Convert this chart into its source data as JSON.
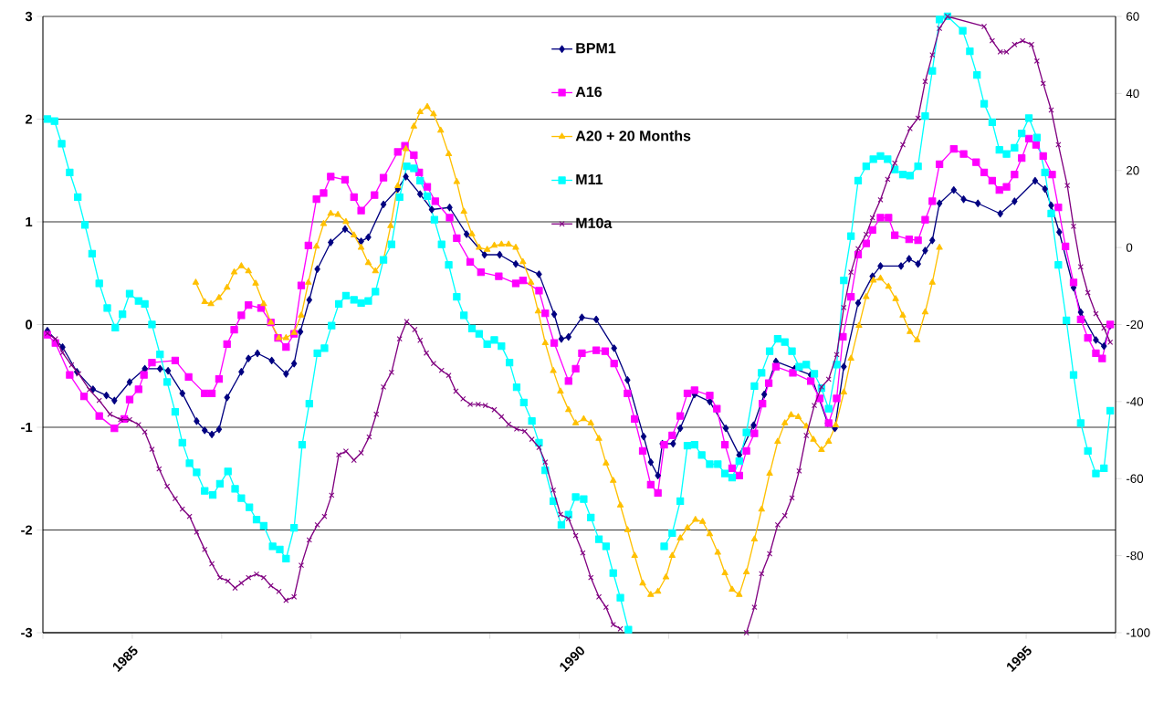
{
  "chart_data": {
    "type": "line",
    "xlim": [
      1984,
      1996
    ],
    "xticks": [
      {
        "value": 1984,
        "label": null
      },
      1985,
      {
        "value": 1986,
        "label": null
      },
      {
        "value": 1987,
        "label": null
      },
      {
        "value": 1988,
        "label": null
      },
      {
        "value": 1989,
        "label": null
      },
      1990,
      {
        "value": 1991,
        "label": null
      },
      {
        "value": 1992,
        "label": null
      },
      {
        "value": 1993,
        "label": null
      },
      {
        "value": 1994,
        "label": null
      },
      1995,
      {
        "value": 1996,
        "label": null
      }
    ],
    "ylim": [
      -3,
      3
    ],
    "yticks": [
      -3,
      -2,
      -1,
      0,
      1,
      2,
      3
    ],
    "y2lim": [
      -100,
      60
    ],
    "y2ticks": [
      -100,
      -80,
      -60,
      -40,
      -20,
      0,
      20,
      40,
      60
    ],
    "grid": "y",
    "legend": "top",
    "line_style": "solid",
    "series": [
      {
        "name": "BPM1",
        "color": "#000080",
        "marker": "diamond",
        "x": [
          1984.05,
          1984.22,
          1984.38,
          1984.56,
          1984.71,
          1984.8,
          1984.97,
          1985.14,
          1985.31,
          1985.4,
          1985.56,
          1985.72,
          1985.81,
          1985.89,
          1985.97,
          1986.06,
          1986.22,
          1986.3,
          1986.4,
          1986.56,
          1986.72,
          1986.81,
          1986.88,
          1986.98,
          1987.07,
          1987.22,
          1987.38,
          1987.56,
          1987.64,
          1987.81,
          1987.97,
          1988.06,
          1988.22,
          1988.35,
          1988.55,
          1988.74,
          1988.94,
          1989.11,
          1989.29,
          1989.55,
          1989.72,
          1989.8,
          1989.88,
          1990.03,
          1990.19,
          1990.39,
          1990.54,
          1990.72,
          1990.8,
          1990.88,
          1990.93,
          1991.05,
          1991.13,
          1991.29,
          1991.46,
          1991.64,
          1991.79,
          1991.95,
          1992.07,
          1992.2,
          1992.41,
          1992.59,
          1992.78,
          1992.86,
          1992.96,
          1993.12,
          1993.28,
          1993.37,
          1993.6,
          1993.69,
          1993.79,
          1993.87,
          1993.95,
          1994.03,
          1994.19,
          1994.3,
          1994.46,
          1994.71,
          1994.87,
          1995.1,
          1995.21,
          1995.28,
          1995.37,
          1995.53,
          1995.61,
          1995.78,
          1995.87,
          1995.94
        ],
        "values": [
          -0.06,
          -0.22,
          -0.46,
          -0.63,
          -0.69,
          -0.74,
          -0.56,
          -0.43,
          -0.43,
          -0.45,
          -0.67,
          -0.94,
          -1.03,
          -1.07,
          -1.02,
          -0.71,
          -0.46,
          -0.33,
          -0.28,
          -0.35,
          -0.48,
          -0.38,
          -0.07,
          0.24,
          0.54,
          0.8,
          0.93,
          0.81,
          0.85,
          1.17,
          1.32,
          1.44,
          1.27,
          1.12,
          1.14,
          0.88,
          0.68,
          0.68,
          0.59,
          0.49,
          0.1,
          -0.14,
          -0.12,
          0.07,
          0.05,
          -0.23,
          -0.54,
          -1.09,
          -1.34,
          -1.47,
          -1.16,
          -1.16,
          -1.01,
          -0.68,
          -0.75,
          -1.01,
          -1.27,
          -0.98,
          -0.68,
          -0.36,
          -0.43,
          -0.49,
          -0.96,
          -1.01,
          -0.41,
          0.21,
          0.47,
          0.57,
          0.57,
          0.64,
          0.59,
          0.72,
          0.82,
          1.18,
          1.31,
          1.22,
          1.18,
          1.08,
          1.2,
          1.4,
          1.32,
          1.16,
          0.9,
          0.36,
          0.12,
          -0.15,
          -0.21,
          -0.01
        ]
      },
      {
        "name": "A16",
        "color": "#ff00ff",
        "marker": "square",
        "x": [
          1984.05,
          1984.14,
          1984.3,
          1984.46,
          1984.63,
          1984.8,
          1984.91,
          1984.97,
          1985.07,
          1985.13,
          1985.22,
          1985.48,
          1985.63,
          1985.81,
          1985.89,
          1985.97,
          1986.06,
          1986.14,
          1986.22,
          1986.3,
          1986.44,
          1986.55,
          1986.63,
          1986.72,
          1986.81,
          1986.89,
          1986.97,
          1987.06,
          1987.14,
          1987.22,
          1987.38,
          1987.48,
          1987.56,
          1987.71,
          1987.81,
          1987.97,
          1988.05,
          1988.15,
          1988.21,
          1988.3,
          1988.39,
          1988.55,
          1988.63,
          1988.78,
          1988.9,
          1989.1,
          1989.29,
          1989.37,
          1989.55,
          1989.62,
          1989.72,
          1989.88,
          1989.96,
          1990.03,
          1990.19,
          1990.29,
          1990.39,
          1990.54,
          1990.62,
          1990.71,
          1990.8,
          1990.88,
          1990.95,
          1991.04,
          1991.13,
          1991.21,
          1991.29,
          1991.46,
          1991.54,
          1991.63,
          1991.71,
          1991.79,
          1991.87,
          1991.96,
          1992.05,
          1992.12,
          1992.2,
          1992.39,
          1992.59,
          1992.69,
          1992.79,
          1992.88,
          1992.95,
          1993.04,
          1993.12,
          1993.21,
          1993.28,
          1993.37,
          1993.46,
          1993.53,
          1993.69,
          1993.79,
          1993.87,
          1993.95,
          1994.03,
          1994.19,
          1994.3,
          1994.44,
          1994.53,
          1994.62,
          1994.7,
          1994.78,
          1994.87,
          1994.95,
          1995.03,
          1995.11,
          1995.19,
          1995.29,
          1995.36,
          1995.44,
          1995.53,
          1995.61,
          1995.69,
          1995.78,
          1995.85,
          1995.94
        ],
        "values": [
          -0.1,
          -0.18,
          -0.49,
          -0.7,
          -0.89,
          -1.01,
          -0.92,
          -0.73,
          -0.63,
          -0.49,
          -0.37,
          -0.35,
          -0.51,
          -0.67,
          -0.67,
          -0.53,
          -0.19,
          -0.05,
          0.09,
          0.19,
          0.16,
          0.02,
          -0.13,
          -0.22,
          -0.09,
          0.38,
          0.77,
          1.22,
          1.28,
          1.44,
          1.41,
          1.24,
          1.11,
          1.26,
          1.43,
          1.68,
          1.74,
          1.65,
          1.48,
          1.34,
          1.2,
          1.04,
          0.84,
          0.61,
          0.51,
          0.47,
          0.4,
          0.43,
          0.33,
          0.11,
          -0.18,
          -0.55,
          -0.43,
          -0.28,
          -0.25,
          -0.26,
          -0.38,
          -0.67,
          -0.92,
          -1.23,
          -1.56,
          -1.64,
          -1.17,
          -1.08,
          -0.89,
          -0.67,
          -0.64,
          -0.69,
          -0.82,
          -1.17,
          -1.4,
          -1.47,
          -1.23,
          -1.06,
          -0.77,
          -0.57,
          -0.41,
          -0.47,
          -0.55,
          -0.72,
          -0.96,
          -0.72,
          -0.12,
          0.27,
          0.68,
          0.79,
          0.92,
          1.04,
          1.04,
          0.87,
          0.83,
          0.82,
          1.02,
          1.2,
          1.56,
          1.71,
          1.66,
          1.58,
          1.48,
          1.4,
          1.31,
          1.34,
          1.46,
          1.62,
          1.81,
          1.75,
          1.64,
          1.46,
          1.14,
          0.76,
          0.41,
          0.05,
          -0.13,
          -0.28,
          -0.33,
          0.0
        ]
      },
      {
        "name": "A20 + 20 Months",
        "color": "#ffc000",
        "marker": "triangle",
        "x": [
          1985.71,
          1985.81,
          1985.88,
          1985.97,
          1986.06,
          1986.14,
          1986.22,
          1986.3,
          1986.38,
          1986.47,
          1986.55,
          1986.64,
          1986.72,
          1986.81,
          1986.89,
          1986.97,
          1987.06,
          1987.14,
          1987.22,
          1987.3,
          1987.39,
          1987.48,
          1987.56,
          1987.64,
          1987.72,
          1987.81,
          1987.89,
          1987.97,
          1988.06,
          1988.15,
          1988.22,
          1988.3,
          1988.37,
          1988.45,
          1988.54,
          1988.63,
          1988.71,
          1988.8,
          1988.88,
          1988.97,
          1989.05,
          1989.13,
          1989.21,
          1989.29,
          1989.37,
          1989.46,
          1989.54,
          1989.62,
          1989.71,
          1989.79,
          1989.88,
          1989.96,
          1990.05,
          1990.13,
          1990.22,
          1990.3,
          1990.38,
          1990.46,
          1990.54,
          1990.62,
          1990.71,
          1990.8,
          1990.88,
          1990.97,
          1991.04,
          1991.13,
          1991.21,
          1991.3,
          1991.38,
          1991.46,
          1991.55,
          1991.63,
          1991.71,
          1991.79,
          1991.87,
          1991.96,
          1992.04,
          1992.13,
          1992.22,
          1992.3,
          1992.37,
          1992.45,
          1992.54,
          1992.62,
          1992.71,
          1992.79,
          1992.87,
          1992.96,
          1993.04,
          1993.13,
          1993.21,
          1993.29,
          1993.37,
          1993.46,
          1993.54,
          1993.62,
          1993.7,
          1993.78,
          1993.87,
          1993.95,
          1994.03
        ],
        "values": [
          0.41,
          0.22,
          0.2,
          0.26,
          0.36,
          0.51,
          0.57,
          0.52,
          0.4,
          0.2,
          0.02,
          -0.13,
          -0.13,
          -0.08,
          0.09,
          0.41,
          0.76,
          0.98,
          1.08,
          1.07,
          1.0,
          0.87,
          0.75,
          0.6,
          0.52,
          0.63,
          0.96,
          1.35,
          1.71,
          1.93,
          2.07,
          2.12,
          2.05,
          1.89,
          1.66,
          1.39,
          1.1,
          0.88,
          0.75,
          0.73,
          0.77,
          0.78,
          0.78,
          0.75,
          0.61,
          0.41,
          0.13,
          -0.18,
          -0.45,
          -0.65,
          -0.83,
          -0.96,
          -0.92,
          -0.96,
          -1.11,
          -1.35,
          -1.52,
          -1.76,
          -2.0,
          -2.25,
          -2.52,
          -2.63,
          -2.6,
          -2.46,
          -2.25,
          -2.08,
          -1.98,
          -1.9,
          -1.92,
          -2.04,
          -2.22,
          -2.42,
          -2.58,
          -2.63,
          -2.41,
          -2.09,
          -1.8,
          -1.45,
          -1.14,
          -0.96,
          -0.88,
          -0.9,
          -0.99,
          -1.12,
          -1.22,
          -1.14,
          -0.98,
          -0.66,
          -0.33,
          -0.01,
          0.27,
          0.43,
          0.45,
          0.37,
          0.25,
          0.09,
          -0.07,
          -0.15,
          0.12,
          0.41,
          0.75
        ]
      },
      {
        "name": "M11",
        "color": "#00ffff",
        "marker": "square",
        "x": [
          1984.05,
          1984.13,
          1984.21,
          1984.3,
          1984.39,
          1984.47,
          1984.55,
          1984.63,
          1984.72,
          1984.81,
          1984.89,
          1984.97,
          1985.07,
          1985.14,
          1985.22,
          1985.31,
          1985.39,
          1985.48,
          1985.56,
          1985.64,
          1985.72,
          1985.81,
          1985.9,
          1985.98,
          1986.07,
          1986.15,
          1986.22,
          1986.31,
          1986.39,
          1986.47,
          1986.57,
          1986.65,
          1986.72,
          1986.81,
          1986.9,
          1986.98,
          1987.07,
          1987.15,
          1987.23,
          1987.31,
          1987.39,
          1987.48,
          1987.56,
          1987.64,
          1987.72,
          1987.81,
          1987.9,
          1987.99,
          1988.07,
          1988.15,
          1988.22,
          1988.3,
          1988.38,
          1988.46,
          1988.54,
          1988.63,
          1988.71,
          1988.8,
          1988.88,
          1988.97,
          1989.05,
          1989.13,
          1989.22,
          1989.3,
          1989.38,
          1989.47,
          1989.55,
          1989.62,
          1989.71,
          1989.8,
          1989.88,
          1989.96,
          1990.05,
          1990.13,
          1990.22,
          1990.3,
          1990.38,
          1990.46,
          1990.55,
          1990.7,
          1990.95,
          1991.04,
          1991.13,
          1991.21,
          1991.29,
          1991.37,
          1991.46,
          1991.55,
          1991.63,
          1991.71,
          1991.79,
          1991.87,
          1991.96,
          1992.04,
          1992.13,
          1992.22,
          1992.3,
          1992.38,
          1992.46,
          1992.54,
          1992.63,
          1992.71,
          1992.79,
          1992.88,
          1992.96,
          1993.04,
          1993.12,
          1993.21,
          1993.29,
          1993.37,
          1993.45,
          1993.53,
          1993.62,
          1993.7,
          1993.79,
          1993.87,
          1993.95,
          1994.03,
          1994.12,
          1994.29,
          1994.37,
          1994.45,
          1994.53,
          1994.62,
          1994.7,
          1994.78,
          1994.87,
          1994.95,
          1995.03,
          1995.12,
          1995.21,
          1995.28,
          1995.36,
          1995.45,
          1995.53,
          1995.61,
          1995.69,
          1995.78,
          1995.87,
          1995.94
        ],
        "values": [
          2.0,
          1.98,
          1.76,
          1.48,
          1.24,
          0.97,
          0.69,
          0.4,
          0.16,
          -0.03,
          0.1,
          0.3,
          0.23,
          0.2,
          0.0,
          -0.29,
          -0.56,
          -0.85,
          -1.15,
          -1.35,
          -1.44,
          -1.62,
          -1.66,
          -1.55,
          -1.43,
          -1.6,
          -1.69,
          -1.78,
          -1.9,
          -1.96,
          -2.16,
          -2.19,
          -2.28,
          -1.98,
          -1.17,
          -0.77,
          -0.28,
          -0.23,
          -0.01,
          0.2,
          0.28,
          0.24,
          0.21,
          0.23,
          0.32,
          0.63,
          0.78,
          1.24,
          1.54,
          1.52,
          1.4,
          1.25,
          1.02,
          0.78,
          0.58,
          0.27,
          0.09,
          -0.04,
          -0.09,
          -0.19,
          -0.15,
          -0.21,
          -0.37,
          -0.61,
          -0.76,
          -0.94,
          -1.15,
          -1.42,
          -1.72,
          -1.95,
          -1.85,
          -1.68,
          -1.7,
          -1.88,
          -2.09,
          -2.16,
          -2.42,
          -2.66,
          -2.97,
          null,
          -2.16,
          -2.03,
          -1.72,
          -1.18,
          -1.17,
          -1.27,
          -1.36,
          -1.36,
          -1.45,
          -1.49,
          -1.33,
          -1.05,
          -0.6,
          -0.47,
          -0.26,
          -0.14,
          -0.17,
          -0.26,
          -0.41,
          -0.39,
          -0.48,
          -0.62,
          -0.82,
          -0.39,
          0.43,
          0.86,
          1.4,
          1.54,
          1.61,
          1.64,
          1.61,
          1.51,
          1.46,
          1.45,
          1.54,
          2.03,
          2.47,
          2.97,
          3.0,
          2.86,
          2.66,
          2.43,
          2.15,
          1.97,
          1.7,
          1.66,
          1.72,
          1.86,
          2.01,
          1.82,
          1.48,
          1.08,
          0.58,
          0.04,
          -0.49,
          -0.96,
          -1.23,
          -1.45,
          -1.4,
          -0.84
        ]
      },
      {
        "name": "M10a",
        "color": "#800080",
        "marker": "cross",
        "axis": "y2",
        "x": [
          1984.05,
          1984.14,
          1984.22,
          1984.32,
          1984.4,
          1984.52,
          1984.63,
          1984.75,
          1984.87,
          1984.97,
          1985.07,
          1985.14,
          1985.22,
          1985.3,
          1985.39,
          1985.48,
          1985.56,
          1985.64,
          1985.72,
          1985.81,
          1985.89,
          1985.98,
          1986.07,
          1986.15,
          1986.22,
          1986.3,
          1986.39,
          1986.47,
          1986.55,
          1986.64,
          1986.72,
          1986.81,
          1986.89,
          1986.98,
          1987.07,
          1987.15,
          1987.23,
          1987.31,
          1987.39,
          1987.48,
          1987.56,
          1987.65,
          1987.73,
          1987.81,
          1987.9,
          1987.99,
          1988.07,
          1988.16,
          1988.22,
          1988.29,
          1988.37,
          1988.46,
          1988.54,
          1988.62,
          1988.7,
          1988.78,
          1988.87,
          1988.95,
          1989.05,
          1989.13,
          1989.21,
          1989.3,
          1989.39,
          1989.47,
          1989.55,
          1989.62,
          1989.71,
          1989.79,
          1989.88,
          1989.96,
          1990.04,
          1990.13,
          1990.22,
          1990.3,
          1990.38,
          1990.46,
          1991.2,
          1991.87,
          1991.96,
          1992.04,
          1992.13,
          1992.22,
          1992.3,
          1992.38,
          1992.46,
          1992.54,
          1992.63,
          1992.71,
          1992.79,
          1992.88,
          1992.96,
          1993.04,
          1993.12,
          1993.21,
          1993.28,
          1993.37,
          1993.45,
          1993.53,
          1993.62,
          1993.7,
          1993.79,
          1993.87,
          1993.95,
          1994.03,
          1994.12,
          1994.53,
          1994.62,
          1994.71,
          1994.78,
          1994.87,
          1994.96,
          1995.06,
          1995.12,
          1995.19,
          1995.28,
          1995.36,
          1995.46,
          1995.53,
          1995.61,
          1995.69,
          1995.78,
          1995.87,
          1995.94
        ],
        "values": [
          -22.3,
          -23.7,
          -27.3,
          -30.5,
          -32.8,
          -36.9,
          -39.7,
          -43.3,
          -44.7,
          -44.7,
          -46.0,
          -47.9,
          -52.4,
          -57.5,
          -62.0,
          -65.2,
          -67.9,
          -69.8,
          -73.9,
          -78.4,
          -82.1,
          -85.7,
          -86.6,
          -88.4,
          -87.1,
          -85.7,
          -84.8,
          -85.7,
          -87.8,
          -89.3,
          -91.6,
          -90.7,
          -82.5,
          -75.9,
          -72.0,
          -69.8,
          -64.3,
          -53.8,
          -52.9,
          -55.2,
          -53.3,
          -49.2,
          -43.3,
          -36.2,
          -32.4,
          -23.7,
          -19.2,
          -21.3,
          -24.1,
          -27.4,
          -30.1,
          -31.9,
          -33.2,
          -37.3,
          -39.3,
          -40.7,
          -40.7,
          -41.0,
          -42.1,
          -43.9,
          -45.9,
          -47.1,
          -47.7,
          -49.8,
          -51.9,
          -55.7,
          -63.0,
          -69.3,
          -70.4,
          -74.8,
          -79.3,
          -85.7,
          -90.7,
          -93.4,
          -97.9,
          -99.0,
          null,
          -100.0,
          -93.4,
          -84.7,
          -79.5,
          -72.0,
          -69.6,
          -65.0,
          -58.0,
          -48.8,
          -41.0,
          -36.2,
          -34.2,
          -27.8,
          -15.6,
          -6.4,
          -0.3,
          3.4,
          7.7,
          12.4,
          17.7,
          21.9,
          26.7,
          30.9,
          33.6,
          43.1,
          50.0,
          56.9,
          60.0,
          57.4,
          53.7,
          50.8,
          50.8,
          52.7,
          53.7,
          52.7,
          48.4,
          42.6,
          35.7,
          26.7,
          16.1,
          5.5,
          -5.0,
          -11.7,
          -17.2,
          -20.9,
          -24.6
        ]
      }
    ]
  }
}
